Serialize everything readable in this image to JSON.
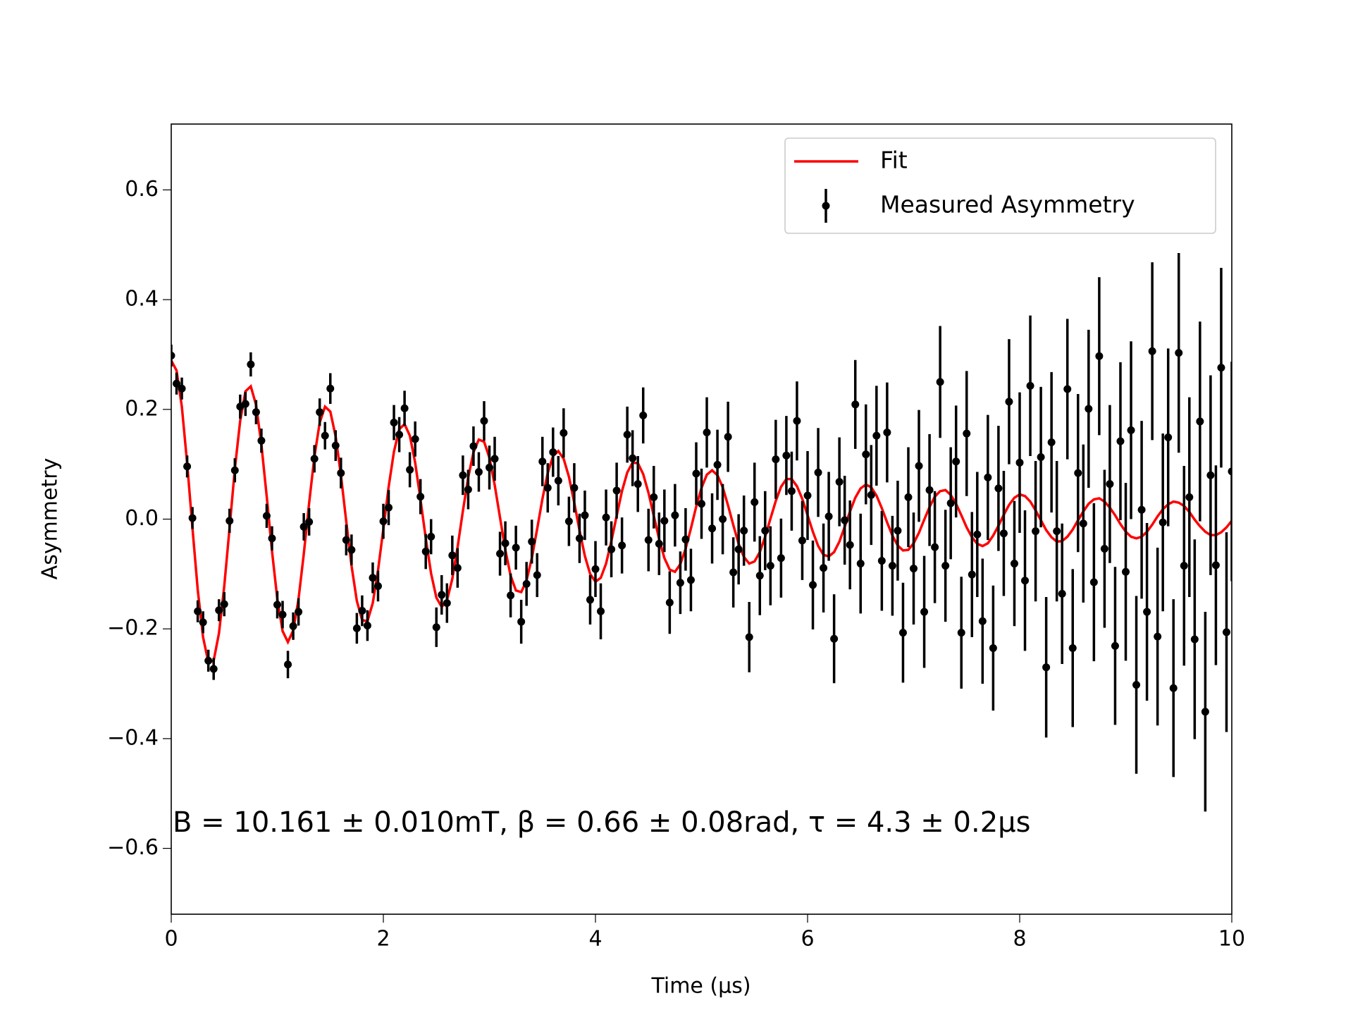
{
  "chart_data": {
    "type": "errorbar",
    "xlabel": "Time (μs)",
    "ylabel": "Asymmetry",
    "annotation": "B = 10.161 ± 0.010mT, β = 0.66 ± 0.08rad, τ = 4.3 ± 0.2μs",
    "xlim": [
      0,
      10
    ],
    "ylim": [
      -0.72,
      0.72
    ],
    "xticks": [
      0,
      2,
      4,
      6,
      8,
      10
    ],
    "yticks": [
      {
        "value": -0.6,
        "label": "−0.6"
      },
      {
        "value": -0.4,
        "label": "−0.4"
      },
      {
        "value": -0.2,
        "label": "−0.2"
      },
      {
        "value": 0,
        "label": "0.0"
      },
      0.2,
      0.4,
      0.6
    ],
    "legend": "upper right",
    "x": [
      0,
      0.05,
      0.1,
      0.15,
      0.2,
      0.25,
      0.3,
      0.35,
      0.4,
      0.45,
      0.5,
      0.55,
      0.6,
      0.65,
      0.7,
      0.75,
      0.8,
      0.85,
      0.9,
      0.95,
      1,
      1.05,
      1.1,
      1.15,
      1.2,
      1.25,
      1.3,
      1.35,
      1.4,
      1.45,
      1.5,
      1.55,
      1.6,
      1.65,
      1.7,
      1.75,
      1.8,
      1.85,
      1.9,
      1.95,
      2,
      2.05,
      2.1,
      2.15,
      2.2,
      2.25,
      2.3,
      2.35,
      2.4,
      2.45,
      2.5,
      2.55,
      2.6,
      2.65,
      2.7,
      2.75,
      2.8,
      2.85,
      2.9,
      2.95,
      3,
      3.05,
      3.1,
      3.15,
      3.2,
      3.25,
      3.3,
      3.35,
      3.4,
      3.45,
      3.5,
      3.55,
      3.6,
      3.65,
      3.7,
      3.75,
      3.8,
      3.85,
      3.9,
      3.95,
      4,
      4.05,
      4.1,
      4.15,
      4.2,
      4.25,
      4.3,
      4.35,
      4.4,
      4.45,
      4.5,
      4.55,
      4.6,
      4.65,
      4.7,
      4.75,
      4.8,
      4.85,
      4.9,
      4.95,
      5,
      5.05,
      5.1,
      5.15,
      5.2,
      5.25,
      5.3,
      5.35,
      5.4,
      5.45,
      5.5,
      5.55,
      5.6,
      5.65,
      5.7,
      5.75,
      5.8,
      5.85,
      5.9,
      5.95,
      6,
      6.05,
      6.1,
      6.15,
      6.2,
      6.25,
      6.3,
      6.35,
      6.4,
      6.45,
      6.5,
      6.55,
      6.6,
      6.65,
      6.7,
      6.75,
      6.8,
      6.85,
      6.9,
      6.95,
      7,
      7.05,
      7.1,
      7.15,
      7.2,
      7.25,
      7.3,
      7.35,
      7.4,
      7.45,
      7.5,
      7.55,
      7.6,
      7.65,
      7.7,
      7.75,
      7.8,
      7.85,
      7.9,
      7.95,
      8,
      8.05,
      8.1,
      8.15,
      8.2,
      8.25,
      8.3,
      8.35,
      8.4,
      8.45,
      8.5,
      8.55,
      8.6,
      8.65,
      8.7,
      8.75,
      8.8,
      8.85,
      8.9,
      8.95,
      9,
      9.05,
      9.1,
      9.15,
      9.2,
      9.25,
      9.3,
      9.35,
      9.4,
      9.45,
      9.5,
      9.55,
      9.6,
      9.65,
      9.7,
      9.75,
      9.8,
      9.85,
      9.9,
      9.95,
      10
    ],
    "series": [
      {
        "name": "Fit",
        "color": "#ff0000",
        "values": [
          0.289,
          0.271,
          0.205,
          0.102,
          -0.016,
          -0.129,
          -0.215,
          -0.261,
          -0.258,
          -0.208,
          -0.122,
          -0.016,
          0.092,
          0.179,
          0.233,
          0.242,
          0.208,
          0.136,
          0.042,
          -0.058,
          -0.145,
          -0.204,
          -0.224,
          -0.203,
          -0.146,
          -0.063,
          0.029,
          0.114,
          0.176,
          0.205,
          0.196,
          0.151,
          0.08,
          -0.004,
          -0.085,
          -0.149,
          -0.184,
          -0.186,
          -0.153,
          -0.093,
          -0.018,
          0.059,
          0.123,
          0.164,
          0.173,
          0.152,
          0.103,
          0.036,
          -0.035,
          -0.099,
          -0.143,
          -0.16,
          -0.148,
          -0.109,
          -0.051,
          0.015,
          0.076,
          0.122,
          0.145,
          0.141,
          0.112,
          0.062,
          0.003,
          -0.056,
          -0.103,
          -0.13,
          -0.133,
          -0.112,
          -0.071,
          -0.018,
          0.037,
          0.084,
          0.115,
          0.124,
          0.11,
          0.077,
          0.03,
          -0.021,
          -0.067,
          -0.1,
          -0.114,
          -0.107,
          -0.081,
          -0.04,
          0.006,
          0.051,
          0.085,
          0.103,
          0.102,
          0.082,
          0.048,
          0.006,
          -0.036,
          -0.071,
          -0.092,
          -0.096,
          -0.082,
          -0.054,
          -0.017,
          0.023,
          0.057,
          0.081,
          0.089,
          0.08,
          0.058,
          0.025,
          -0.011,
          -0.045,
          -0.069,
          -0.081,
          -0.077,
          -0.06,
          -0.032,
          0.001,
          0.033,
          0.059,
          0.073,
          0.073,
          0.06,
          0.037,
          0.007,
          -0.023,
          -0.049,
          -0.065,
          -0.068,
          -0.06,
          -0.041,
          -0.014,
          0.014,
          0.039,
          0.056,
          0.063,
          0.058,
          0.043,
          0.02,
          -0.006,
          -0.03,
          -0.048,
          -0.057,
          -0.056,
          -0.044,
          -0.025,
          -0.001,
          0.022,
          0.041,
          0.051,
          0.053,
          0.044,
          0.028,
          0.007,
          -0.015,
          -0.033,
          -0.045,
          -0.049,
          -0.044,
          -0.03,
          -0.012,
          0.008,
          0.026,
          0.039,
          0.045,
          0.042,
          0.032,
          0.016,
          -0.002,
          -0.02,
          -0.033,
          -0.041,
          -0.04,
          -0.032,
          -0.019,
          -0.002,
          0.014,
          0.028,
          0.036,
          0.038,
          0.032,
          0.021,
          0.007,
          -0.009,
          -0.023,
          -0.032,
          -0.035,
          -0.032,
          -0.023,
          -0.01,
          0.005,
          0.018,
          0.027,
          0.032,
          0.03,
          0.024,
          0.013,
          -0.001,
          -0.013,
          -0.023,
          -0.029,
          -0.029,
          -0.024,
          -0.015,
          -0.003
        ]
      },
      {
        "name": "Measured Asymmetry",
        "color": "#000000",
        "values": [
          0.298,
          0.247,
          0.238,
          0.096,
          0.002,
          -0.168,
          -0.188,
          -0.258,
          -0.273,
          -0.166,
          -0.155,
          -0.003,
          0.089,
          0.205,
          0.21,
          0.282,
          0.195,
          0.143,
          0.006,
          -0.035,
          -0.156,
          -0.174,
          -0.265,
          -0.195,
          -0.169,
          -0.014,
          -0.005,
          0.11,
          0.195,
          0.152,
          0.238,
          0.134,
          0.084,
          -0.038,
          -0.056,
          -0.199,
          -0.167,
          -0.194,
          -0.107,
          -0.122,
          -0.004,
          0.021,
          0.176,
          0.154,
          0.202,
          0.09,
          0.146,
          0.041,
          -0.059,
          -0.032,
          -0.197,
          -0.138,
          -0.153,
          -0.066,
          -0.089,
          0.08,
          0.054,
          0.133,
          0.086,
          0.179,
          0.094,
          0.11,
          -0.063,
          -0.044,
          -0.139,
          -0.052,
          -0.187,
          -0.118,
          -0.041,
          -0.102,
          0.105,
          0.057,
          0.122,
          0.07,
          0.157,
          -0.004,
          0.057,
          -0.035,
          0.007,
          -0.147,
          -0.091,
          -0.168,
          0.003,
          -0.055,
          0.052,
          -0.048,
          0.154,
          0.111,
          0.064,
          0.189,
          -0.038,
          0.04,
          -0.045,
          -0.003,
          -0.152,
          0.007,
          -0.116,
          -0.037,
          -0.111,
          0.083,
          0.028,
          0.158,
          -0.017,
          0.099,
          0.0,
          0.15,
          -0.097,
          -0.055,
          -0.021,
          -0.215,
          0.031,
          -0.103,
          -0.021,
          -0.085,
          0.109,
          -0.071,
          0.116,
          0.051,
          0.179,
          -0.039,
          0.043,
          -0.12,
          0.085,
          -0.089,
          0.005,
          -0.218,
          0.068,
          -0.002,
          -0.047,
          0.209,
          -0.081,
          0.118,
          0.044,
          0.152,
          -0.076,
          0.158,
          -0.085,
          -0.021,
          -0.207,
          0.04,
          -0.09,
          0.097,
          -0.169,
          0.053,
          -0.051,
          0.25,
          -0.085,
          0.029,
          0.105,
          -0.207,
          0.156,
          -0.101,
          -0.028,
          -0.186,
          0.076,
          -0.235,
          0.056,
          -0.026,
          0.214,
          -0.081,
          0.103,
          -0.112,
          0.243,
          -0.022,
          0.113,
          -0.27,
          0.14,
          -0.022,
          -0.136,
          0.237,
          -0.235,
          0.084,
          -0.008,
          0.201,
          -0.115,
          0.297,
          -0.054,
          0.064,
          -0.231,
          0.142,
          -0.096,
          0.162,
          -0.302,
          0.017,
          -0.169,
          0.306,
          -0.214,
          -0.006,
          0.149,
          -0.308,
          0.303,
          -0.085,
          0.04,
          -0.219,
          0.178,
          -0.351,
          0.08,
          -0.084,
          0.276,
          -0.206,
          0.087
        ],
        "errors": [
          0.02,
          0.02,
          0.02,
          0.02,
          0.02,
          0.02,
          0.02,
          0.02,
          0.02,
          0.02,
          0.022,
          0.022,
          0.022,
          0.022,
          0.022,
          0.022,
          0.022,
          0.022,
          0.022,
          0.022,
          0.025,
          0.025,
          0.025,
          0.025,
          0.025,
          0.025,
          0.025,
          0.025,
          0.025,
          0.025,
          0.028,
          0.028,
          0.028,
          0.028,
          0.028,
          0.028,
          0.028,
          0.028,
          0.028,
          0.028,
          0.032,
          0.032,
          0.032,
          0.032,
          0.032,
          0.032,
          0.032,
          0.032,
          0.032,
          0.032,
          0.036,
          0.036,
          0.036,
          0.036,
          0.036,
          0.036,
          0.036,
          0.036,
          0.036,
          0.036,
          0.04,
          0.04,
          0.04,
          0.04,
          0.04,
          0.04,
          0.04,
          0.04,
          0.04,
          0.04,
          0.045,
          0.045,
          0.045,
          0.045,
          0.045,
          0.045,
          0.045,
          0.045,
          0.045,
          0.045,
          0.051,
          0.051,
          0.051,
          0.051,
          0.051,
          0.051,
          0.051,
          0.051,
          0.051,
          0.051,
          0.057,
          0.057,
          0.057,
          0.057,
          0.057,
          0.057,
          0.057,
          0.057,
          0.057,
          0.057,
          0.064,
          0.064,
          0.064,
          0.064,
          0.064,
          0.064,
          0.064,
          0.064,
          0.064,
          0.064,
          0.072,
          0.072,
          0.072,
          0.072,
          0.072,
          0.072,
          0.072,
          0.072,
          0.072,
          0.072,
          0.081,
          0.081,
          0.081,
          0.081,
          0.081,
          0.081,
          0.081,
          0.081,
          0.081,
          0.081,
          0.091,
          0.091,
          0.091,
          0.091,
          0.091,
          0.091,
          0.091,
          0.091,
          0.091,
          0.091,
          0.102,
          0.102,
          0.102,
          0.102,
          0.102,
          0.102,
          0.102,
          0.102,
          0.102,
          0.102,
          0.114,
          0.114,
          0.114,
          0.114,
          0.114,
          0.114,
          0.114,
          0.114,
          0.114,
          0.114,
          0.128,
          0.128,
          0.128,
          0.128,
          0.128,
          0.128,
          0.128,
          0.128,
          0.128,
          0.128,
          0.144,
          0.144,
          0.144,
          0.144,
          0.144,
          0.144,
          0.144,
          0.144,
          0.144,
          0.144,
          0.162,
          0.162,
          0.162,
          0.162,
          0.162,
          0.162,
          0.162,
          0.162,
          0.162,
          0.162,
          0.182,
          0.182,
          0.182,
          0.182,
          0.182,
          0.182,
          0.182,
          0.182,
          0.182,
          0.182,
          0.2
        ]
      }
    ]
  }
}
